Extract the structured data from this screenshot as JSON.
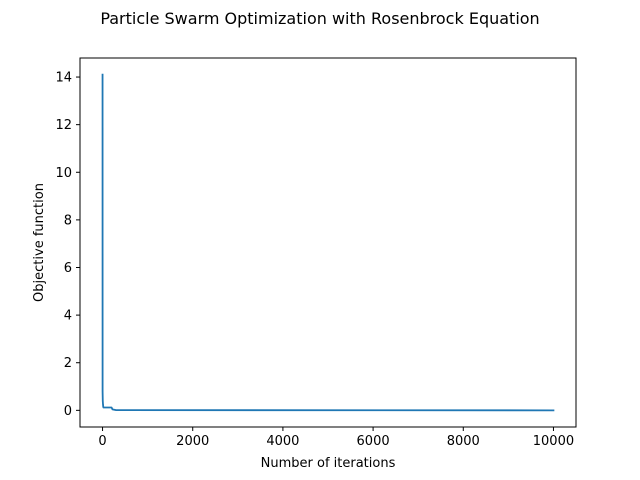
{
  "chart_data": {
    "type": "line",
    "title": "Particle Swarm Optimization with Rosenbrock Equation",
    "xlabel": "Number of iterations",
    "ylabel": "Objective function",
    "xlim": [
      -500,
      10500
    ],
    "ylim": [
      -0.7,
      14.8
    ],
    "xticks": [
      0,
      2000,
      4000,
      6000,
      8000,
      10000
    ],
    "xtick_labels": [
      "0",
      "2000",
      "4000",
      "6000",
      "8000",
      "10000"
    ],
    "yticks": [
      0,
      2,
      4,
      6,
      8,
      10,
      12,
      14
    ],
    "ytick_labels": [
      "0",
      "2",
      "4",
      "6",
      "8",
      "10",
      "12",
      "14"
    ],
    "grid": false,
    "series": [
      {
        "name": "Objective function",
        "color": "#1f77b4",
        "x": [
          0,
          1,
          5,
          10,
          15,
          20,
          200,
          220,
          300,
          10000
        ],
        "y": [
          14.1,
          0.8,
          0.4,
          0.25,
          0.15,
          0.12,
          0.12,
          0.04,
          0.01,
          0.0
        ]
      }
    ]
  }
}
